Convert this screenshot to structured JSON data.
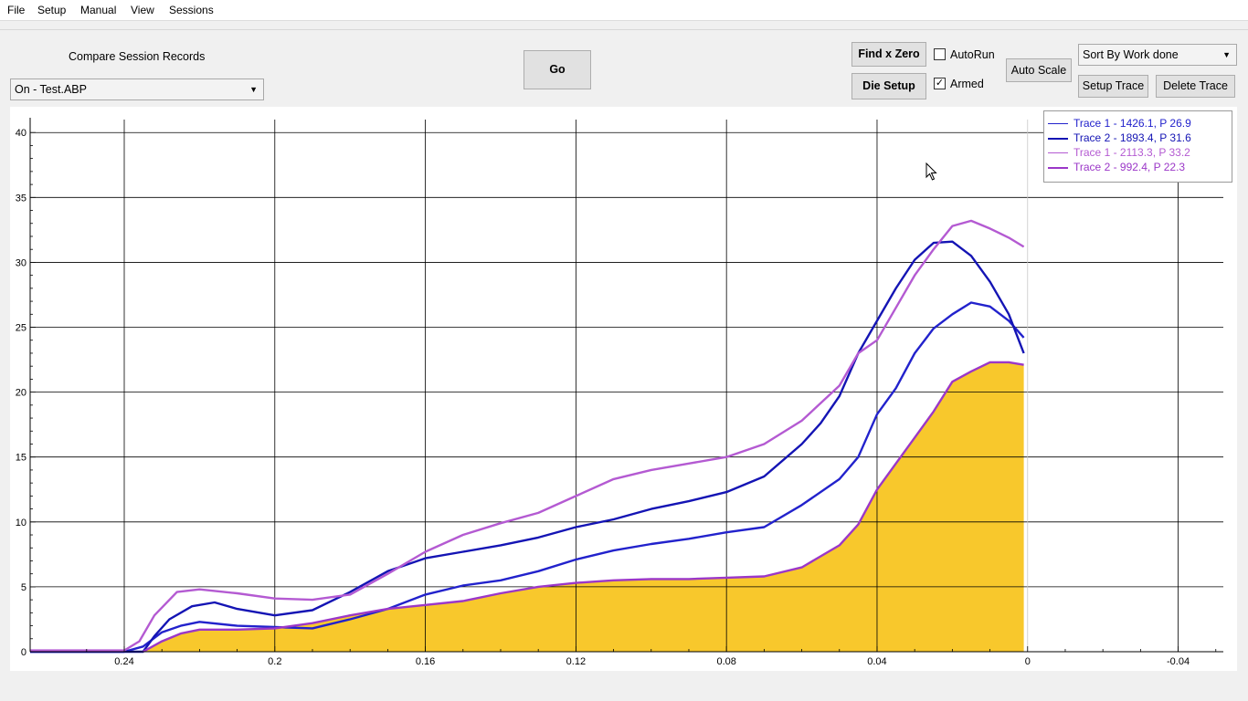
{
  "menu": [
    "File",
    "Setup",
    "Manual",
    "View",
    "Sessions"
  ],
  "toolbar": {
    "compare_label": "Compare Session Records",
    "session_select": "On - Test.ABP",
    "go_label": "Go",
    "find_x_zero_label": "Find x Zero",
    "die_setup_label": "Die Setup",
    "autorun_label": "AutoRun",
    "autorun_checked": false,
    "armed_label": "Armed",
    "armed_checked": true,
    "auto_scale_label": "Auto Scale",
    "sort_select": "Sort By Work done",
    "setup_trace_label": "Setup Trace",
    "delete_trace_label": "Delete Trace"
  },
  "legend": [
    {
      "label": "Trace 1 - 1426.1, P 26.9",
      "color": "#2222cc"
    },
    {
      "label": "Trace 2 - 1893.4, P 31.6",
      "color": "#1414b4"
    },
    {
      "label": "Trace 1 - 2113.3, P 33.2",
      "color": "#b45ad2"
    },
    {
      "label": "Trace 2 - 992.4, P 22.3",
      "color": "#9b37c8"
    }
  ],
  "chart_data": {
    "type": "line",
    "x_reversed": true,
    "xlim": [
      0.265,
      -0.052
    ],
    "ylim": [
      0,
      41
    ],
    "x_ticks": [
      "0.24",
      "0.2",
      "0.16",
      "0.12",
      "0.08",
      "0.04",
      "0",
      "-0.04"
    ],
    "y_ticks": [
      "0",
      "5",
      "10",
      "15",
      "20",
      "25",
      "30",
      "35",
      "40"
    ],
    "grid": true,
    "legend_position": "top-right",
    "series": [
      {
        "name": "Trace 1 - 1426.1, P 26.9",
        "color": "#2222cc",
        "x": [
          0.265,
          0.24,
          0.235,
          0.23,
          0.225,
          0.22,
          0.21,
          0.2,
          0.19,
          0.18,
          0.17,
          0.16,
          0.15,
          0.14,
          0.13,
          0.12,
          0.11,
          0.1,
          0.09,
          0.08,
          0.07,
          0.06,
          0.05,
          0.045,
          0.04,
          0.035,
          0.03,
          0.025,
          0.02,
          0.015,
          0.01,
          0.005,
          0.001
        ],
        "y": [
          0.0,
          0.0,
          0.4,
          1.5,
          2.0,
          2.3,
          2.0,
          1.9,
          1.8,
          2.5,
          3.3,
          4.4,
          5.1,
          5.5,
          6.2,
          7.1,
          7.8,
          8.3,
          8.7,
          9.2,
          9.6,
          11.3,
          13.3,
          15.0,
          18.3,
          20.3,
          23.0,
          24.9,
          26.0,
          26.9,
          26.6,
          25.5,
          24.2
        ]
      },
      {
        "name": "Trace 2 - 1893.4, P 31.6",
        "color": "#1414b4",
        "x": [
          0.265,
          0.235,
          0.232,
          0.228,
          0.222,
          0.216,
          0.21,
          0.2,
          0.19,
          0.18,
          0.17,
          0.16,
          0.15,
          0.14,
          0.13,
          0.12,
          0.11,
          0.1,
          0.09,
          0.08,
          0.07,
          0.06,
          0.055,
          0.05,
          0.045,
          0.04,
          0.035,
          0.03,
          0.025,
          0.02,
          0.015,
          0.01,
          0.005,
          0.001
        ],
        "y": [
          0.0,
          0.0,
          1.2,
          2.5,
          3.5,
          3.8,
          3.3,
          2.8,
          3.2,
          4.6,
          6.2,
          7.2,
          7.7,
          8.2,
          8.8,
          9.6,
          10.2,
          11.0,
          11.6,
          12.3,
          13.5,
          16.0,
          17.6,
          19.7,
          23.0,
          25.5,
          28.0,
          30.2,
          31.5,
          31.6,
          30.5,
          28.5,
          26.0,
          23.0
        ]
      },
      {
        "name": "Trace 1 - 2113.3, P 33.2",
        "color": "#b45ad2",
        "x": [
          0.265,
          0.24,
          0.236,
          0.232,
          0.226,
          0.22,
          0.21,
          0.2,
          0.19,
          0.18,
          0.17,
          0.16,
          0.15,
          0.14,
          0.13,
          0.12,
          0.11,
          0.1,
          0.09,
          0.08,
          0.07,
          0.06,
          0.05,
          0.045,
          0.04,
          0.035,
          0.03,
          0.025,
          0.02,
          0.015,
          0.01,
          0.005,
          0.001
        ],
        "y": [
          0.1,
          0.1,
          0.8,
          2.8,
          4.6,
          4.8,
          4.5,
          4.1,
          4.0,
          4.4,
          6.0,
          7.7,
          9.0,
          9.9,
          10.7,
          12.0,
          13.3,
          14.0,
          14.5,
          15.0,
          16.0,
          17.8,
          20.5,
          23.0,
          24.0,
          26.5,
          29.0,
          31.0,
          32.8,
          33.2,
          32.6,
          31.9,
          31.2
        ]
      },
      {
        "name": "Trace 2 - 992.4, P 22.3",
        "color": "#9b37c8",
        "x": [
          0.235,
          0.23,
          0.225,
          0.22,
          0.21,
          0.2,
          0.19,
          0.18,
          0.17,
          0.16,
          0.15,
          0.14,
          0.13,
          0.12,
          0.11,
          0.1,
          0.09,
          0.08,
          0.07,
          0.06,
          0.05,
          0.045,
          0.04,
          0.035,
          0.03,
          0.025,
          0.02,
          0.015,
          0.01,
          0.005,
          0.001
        ],
        "y": [
          0.0,
          0.8,
          1.4,
          1.7,
          1.7,
          1.8,
          2.2,
          2.8,
          3.3,
          3.6,
          3.9,
          4.5,
          5.0,
          5.3,
          5.5,
          5.6,
          5.6,
          5.7,
          5.8,
          6.5,
          8.2,
          9.8,
          12.5,
          14.5,
          16.5,
          18.5,
          20.8,
          21.6,
          22.3,
          22.3,
          22.1
        ]
      }
    ],
    "fill": {
      "series_index": 3,
      "color": "#f8c82c"
    }
  }
}
